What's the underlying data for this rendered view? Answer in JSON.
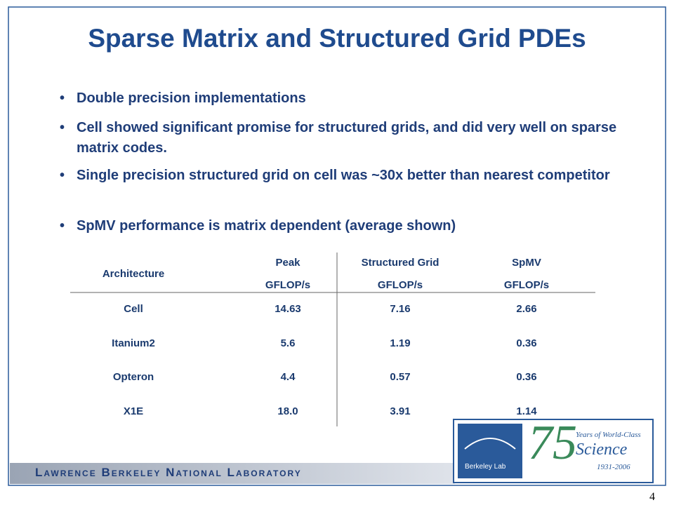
{
  "title": "Sparse Matrix and Structured Grid PDEs",
  "bullets": [
    "Double precision implementations",
    "Cell showed significant promise for structured grids, and did very well on sparse matrix codes.",
    "Single precision structured grid on cell was ~30x better than nearest competitor",
    "SpMV performance is matrix dependent (average shown)"
  ],
  "table": {
    "header": [
      [
        "Architecture"
      ],
      [
        "Peak",
        "GFLOP/s"
      ],
      [
        "Structured Grid",
        "GFLOP/s"
      ],
      [
        "SpMV",
        "GFLOP/s"
      ]
    ],
    "rows": [
      [
        "Cell",
        "14.63",
        "7.16",
        "2.66"
      ],
      [
        "Itanium2",
        "5.6",
        "1.19",
        "0.36"
      ],
      [
        "Opteron",
        "4.4",
        "0.57",
        "0.36"
      ],
      [
        "X1E",
        "18.0",
        "3.91",
        "1.14"
      ]
    ]
  },
  "footer": "Lawrence Berkeley National Laboratory",
  "logo": {
    "lab": "Berkeley Lab",
    "number": "75",
    "line1": "Years of World-Class",
    "line2": "Science",
    "years": "1931-2006"
  },
  "page_number": "4"
}
